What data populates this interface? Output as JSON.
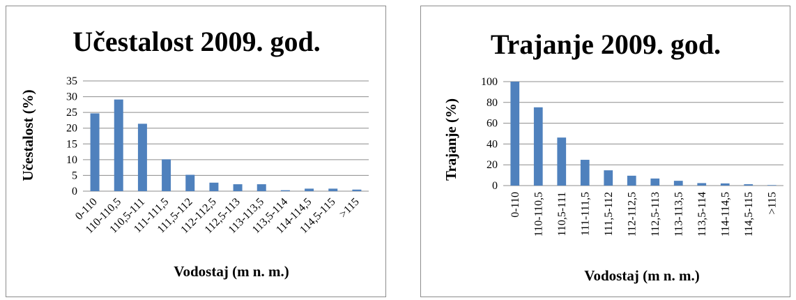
{
  "colors": {
    "bar": "#4f81bd",
    "grid": "#8c8c8c"
  },
  "chart_data": [
    {
      "type": "bar",
      "title": "Učestalost 2009. god.",
      "xlabel": "Vodostaj (m n. m.)",
      "ylabel": "Učestalost (%)",
      "ylim": [
        0,
        35
      ],
      "yticks": [
        0,
        5,
        10,
        15,
        20,
        25,
        30,
        35
      ],
      "grid": true,
      "legend": "none",
      "categories": [
        "0-110",
        "110-110,5",
        "110,5-111",
        "111-111,5",
        "111,5-112",
        "112-112,5",
        "112,5-113",
        "113-113,5",
        "113,5-114",
        "114-114,5",
        "114,5-115",
        ">115"
      ],
      "values": [
        24.7,
        29.1,
        21.4,
        10.1,
        5.2,
        2.7,
        2.2,
        2.2,
        0.3,
        0.8,
        0.8,
        0.5
      ]
    },
    {
      "type": "bar",
      "title": "Trajanje 2009. god.",
      "xlabel": "Vodostaj (m n. m.)",
      "ylabel": "Trajanje (%)",
      "ylim": [
        0,
        100
      ],
      "yticks": [
        0,
        20,
        40,
        60,
        80,
        100
      ],
      "grid": true,
      "legend": "none",
      "categories": [
        "0-110",
        "110-110,5",
        "110,5-111",
        "111-111,5",
        "111,5-112",
        "112-112,5",
        "112,5-113",
        "113-113,5",
        "113,5-114",
        "114-114,5",
        "114,5-115",
        ">115"
      ],
      "values": [
        100,
        75.3,
        46.2,
        24.8,
        14.7,
        9.5,
        6.8,
        4.6,
        2.4,
        2.1,
        1.3,
        0.5
      ]
    }
  ]
}
